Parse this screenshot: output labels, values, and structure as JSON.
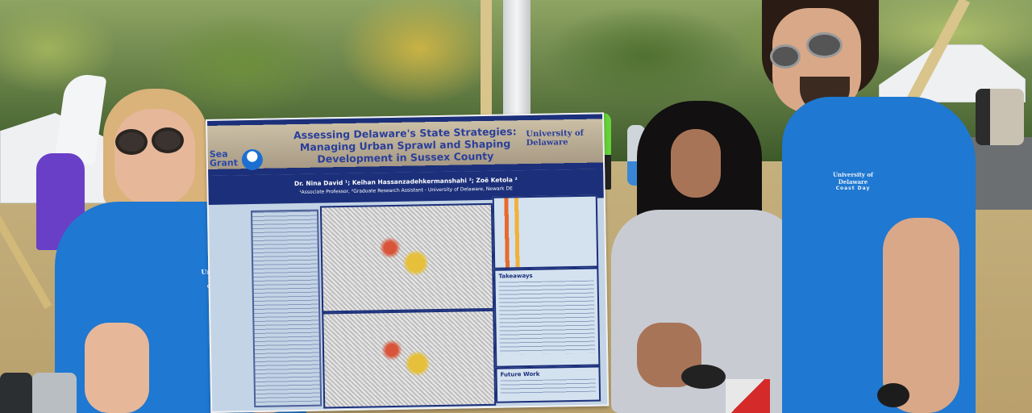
{
  "poster": {
    "title": "Assessing Delaware's State Strategies: Managing Urban Sprawl and Shaping Development in Sussex County",
    "logo_left": "Sea Grant",
    "logo_right": "University of Delaware",
    "authors": "Dr. Nina David ¹; Keihan Hassanzadehkermanshahi ²; Zoë Ketola ²",
    "affiliation": "¹Associate Professor, ²Graduate Research Assistant - University of Delaware, Newark DE",
    "takeaways_heading": "Takeaways",
    "future_work_heading": "Future Work"
  },
  "shirts": {
    "brand": "University of Delaware",
    "event": "Coast Day"
  },
  "colors": {
    "shirt_blue": "#1f78d1",
    "poster_navy": "#1b2f7a",
    "poster_panel": "#d4e2f0"
  }
}
